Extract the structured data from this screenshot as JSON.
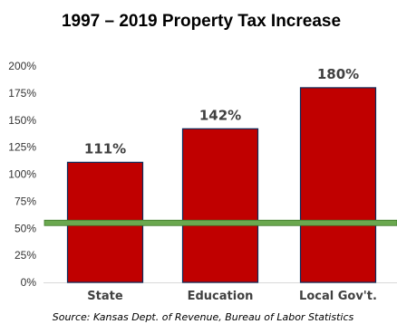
{
  "chart_data": {
    "type": "bar",
    "title": "1997 – 2019 Property Tax Increase",
    "categories": [
      "State",
      "Education",
      "Local Gov't."
    ],
    "values": [
      111,
      142,
      180
    ],
    "data_labels": [
      "111%",
      "142%",
      "180%"
    ],
    "y_ticks": [
      "0%",
      "25%",
      "50%",
      "75%",
      "100%",
      "125%",
      "150%",
      "175%",
      "200%"
    ],
    "ylim": [
      0,
      200
    ],
    "grid": false,
    "bar_color": "#c00000",
    "bar_edge_color": "#0b2a5a",
    "reference_line": {
      "value": 55,
      "color": "#6aa84f"
    },
    "source": "Source: Kansas Dept. of Revenue, Bureau of Labor Statistics"
  }
}
